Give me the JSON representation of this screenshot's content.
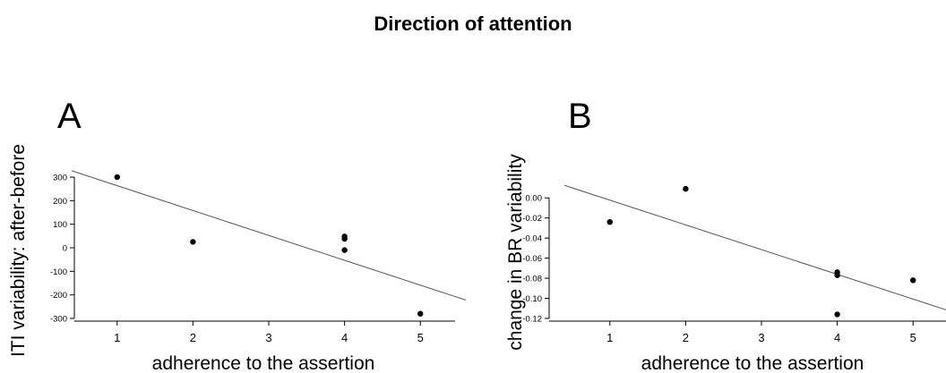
{
  "figure": {
    "title": "Direction of attention"
  },
  "chart_data": [
    {
      "type": "scatter",
      "panel": "A",
      "title": "",
      "xlabel": "adherence to the assertion",
      "ylabel": "ITI variability: after-before",
      "xlim": [
        0.4,
        5.6
      ],
      "ylim": [
        -300,
        300
      ],
      "xticks": [
        "1",
        "2",
        "3",
        "4",
        "5"
      ],
      "xtick_values": [
        1,
        2,
        3,
        4,
        5
      ],
      "yticks": [
        "-300",
        "-200",
        "-100",
        "0",
        "100",
        "200",
        "300"
      ],
      "ytick_values": [
        -300,
        -200,
        -100,
        0,
        100,
        200,
        300
      ],
      "points": [
        {
          "x": 1,
          "y": 300
        },
        {
          "x": 2,
          "y": 25
        },
        {
          "x": 4,
          "y": 48
        },
        {
          "x": 4,
          "y": 38
        },
        {
          "x": 4,
          "y": -10
        },
        {
          "x": 5,
          "y": -280
        }
      ],
      "fit_line": {
        "x": [
          0.4,
          5.6
        ],
        "y": [
          327,
          -222
        ]
      },
      "grid": false
    },
    {
      "type": "scatter",
      "panel": "B",
      "title": "",
      "xlabel": "adherence to the assertion",
      "ylabel": "change in BR variability",
      "xlim": [
        0.4,
        5.6
      ],
      "ylim": [
        -0.12,
        0.01
      ],
      "xticks": [
        "1",
        "2",
        "3",
        "4",
        "5"
      ],
      "xtick_values": [
        1,
        2,
        3,
        4,
        5
      ],
      "yticks": [
        "-0.12",
        "-0.10",
        "-0.08",
        "-0.06",
        "-0.04",
        "-0.02",
        "0.00"
      ],
      "ytick_values": [
        -0.12,
        -0.1,
        -0.08,
        -0.06,
        -0.04,
        -0.02,
        0.0
      ],
      "points": [
        {
          "x": 1,
          "y": -0.024
        },
        {
          "x": 2,
          "y": 0.009
        },
        {
          "x": 4,
          "y": -0.074
        },
        {
          "x": 4,
          "y": -0.077
        },
        {
          "x": 4,
          "y": -0.116
        },
        {
          "x": 5,
          "y": -0.082
        }
      ],
      "fit_line": {
        "x": [
          0.4,
          5.6
        ],
        "y": [
          0.0125,
          -0.1155
        ]
      },
      "grid": false
    }
  ]
}
